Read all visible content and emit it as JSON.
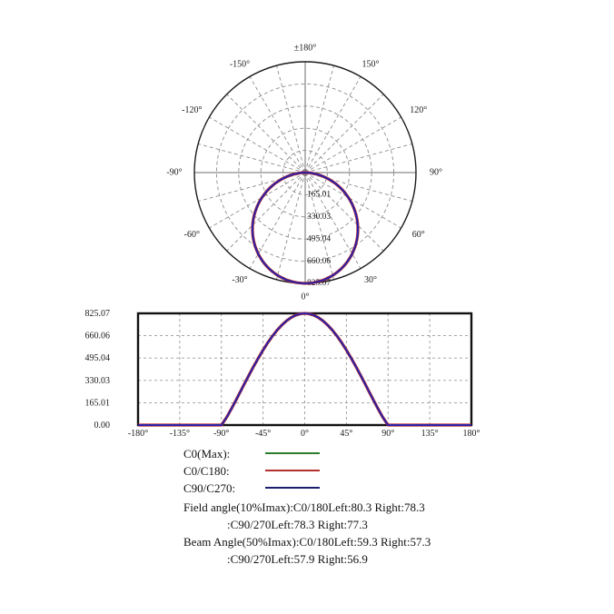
{
  "page": {
    "background": "#ffffff"
  },
  "chart_data": [
    {
      "type": "line",
      "coordinate_system": "polar",
      "title": "",
      "angle_ticks": [
        {
          "deg": 0,
          "label": "0°"
        },
        {
          "deg": 30,
          "label": "30°"
        },
        {
          "deg": 60,
          "label": "60°"
        },
        {
          "deg": 90,
          "label": "90°"
        },
        {
          "deg": 120,
          "label": "120°"
        },
        {
          "deg": 150,
          "label": "150°"
        },
        {
          "deg": 180,
          "label": "±180°"
        },
        {
          "deg": -150,
          "label": "-150°"
        },
        {
          "deg": -120,
          "label": "-120°"
        },
        {
          "deg": -90,
          "label": "-90°"
        },
        {
          "deg": -60,
          "label": "-60°"
        },
        {
          "deg": -30,
          "label": "-30°"
        }
      ],
      "minor_angle_step_deg": 15,
      "r_axis": {
        "max": 825.07,
        "tick_labels": [
          "165.01",
          "330.03",
          "495.04",
          "660.06",
          "825.07"
        ]
      },
      "series": [
        {
          "name": "C0(Max)",
          "color": "#2a7d2a",
          "width": 2.5
        },
        {
          "name": "C0/C180",
          "color": "#bb2b2b",
          "width": 3.2
        },
        {
          "name": "C90/C270",
          "color": "#2b22a8",
          "width": 2.0
        }
      ],
      "profile_symmetric": true,
      "profile_points_deg_cd": [
        [
          0,
          825.07
        ],
        [
          5,
          821.5
        ],
        [
          10,
          810.7
        ],
        [
          15,
          792.9
        ],
        [
          20,
          768.1
        ],
        [
          25,
          736.8
        ],
        [
          30,
          699.3
        ],
        [
          35,
          656.1
        ],
        [
          40,
          607.5
        ],
        [
          45,
          553.9
        ],
        [
          50,
          496.3
        ],
        [
          55,
          435.4
        ],
        [
          60,
          371.8
        ],
        [
          65,
          306.5
        ],
        [
          70,
          240.2
        ],
        [
          75,
          173.9
        ],
        [
          80,
          110.2
        ],
        [
          85,
          49.8
        ],
        [
          90,
          0
        ],
        [
          180,
          0
        ]
      ]
    },
    {
      "type": "line",
      "coordinate_system": "cartesian",
      "title": "",
      "xlabel": "",
      "ylabel": "",
      "xlim": [
        -180,
        180
      ],
      "ylim": [
        0,
        825.07
      ],
      "grid": "dashed",
      "x_ticks": [
        {
          "deg": -180,
          "label": "-180°"
        },
        {
          "deg": -135,
          "label": "-135°"
        },
        {
          "deg": -90,
          "label": "-90°"
        },
        {
          "deg": -45,
          "label": "-45°"
        },
        {
          "deg": 0,
          "label": "0°"
        },
        {
          "deg": 45,
          "label": "45°"
        },
        {
          "deg": 90,
          "label": "90°"
        },
        {
          "deg": 135,
          "label": "135°"
        },
        {
          "deg": 180,
          "label": "180°"
        }
      ],
      "y_ticks": [
        {
          "value": 0,
          "label": "0.00"
        },
        {
          "value": 165.01,
          "label": "165.01"
        },
        {
          "value": 330.03,
          "label": "330.03"
        },
        {
          "value": 495.04,
          "label": "495.04"
        },
        {
          "value": 660.06,
          "label": "660.06"
        },
        {
          "value": 825.07,
          "label": "825.07"
        }
      ],
      "uses_profile_of_chart": 0,
      "series": [
        {
          "name": "C0(Max)",
          "color": "#2a7d2a",
          "width": 2.5
        },
        {
          "name": "C0/C180",
          "color": "#bb2b2b",
          "width": 3.2
        },
        {
          "name": "C90/C270",
          "color": "#2b22a8",
          "width": 2.0
        }
      ]
    }
  ],
  "legend": {
    "items": [
      {
        "label": "C0(Max):",
        "color": "#2a7d2a"
      },
      {
        "label": "C0/C180:",
        "color": "#b52f2f"
      },
      {
        "label": "C90/C270:",
        "color": "#1c1f6e"
      }
    ]
  },
  "notes": {
    "lines": [
      "Field angle(10%Imax):C0/180Left:80.3 Right:78.3",
      ":C90/270Left:78.3 Right:77.3",
      "Beam Angle(50%Imax):C0/180Left:59.3 Right:57.3",
      ":C90/270Left:57.9 Right:56.9"
    ]
  }
}
